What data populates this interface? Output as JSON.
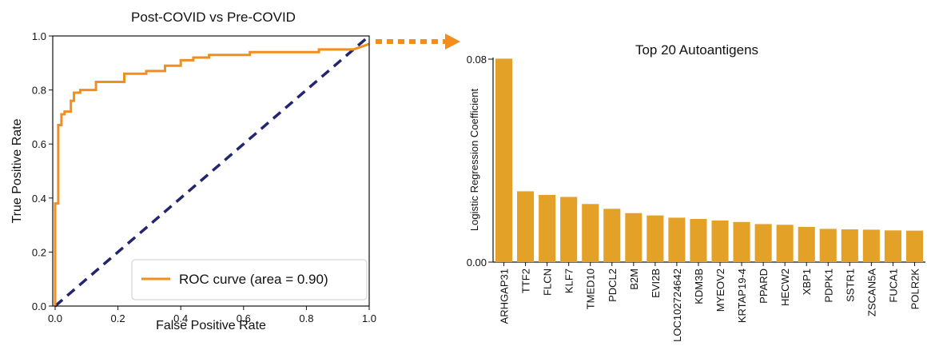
{
  "colors": {
    "roc": "#f28e1c",
    "diagonal": "#23266e",
    "bars": "#e3a227",
    "arrow": "#f28e1c",
    "axis": "#111111"
  },
  "chart_data": [
    {
      "type": "line",
      "title": "Post-COVID vs Pre-COVID",
      "xlabel": "False Positive Rate",
      "ylabel": "True Positive Rate",
      "xlim": [
        0.0,
        1.0
      ],
      "ylim": [
        0.0,
        1.0
      ],
      "xticks": [
        "0.0",
        "0.2",
        "0.4",
        "0.6",
        "0.8",
        "1.0"
      ],
      "yticks": [
        "0.0",
        "0.2",
        "0.4",
        "0.6",
        "0.8",
        "1.0"
      ],
      "grid": false,
      "legend_position": "lower-right",
      "legend": "ROC curve (area = 0.90)",
      "series": [
        {
          "name": "ROC curve (area = 0.90)",
          "style": "solid",
          "x": [
            0.0,
            0.0,
            0.01,
            0.01,
            0.02,
            0.02,
            0.03,
            0.03,
            0.05,
            0.05,
            0.06,
            0.06,
            0.08,
            0.08,
            0.13,
            0.13,
            0.19,
            0.19,
            0.22,
            0.22,
            0.26,
            0.26,
            0.29,
            0.29,
            0.33,
            0.33,
            0.35,
            0.35,
            0.4,
            0.4,
            0.44,
            0.44,
            0.49,
            0.49,
            0.62,
            0.62,
            0.84,
            0.84,
            0.95,
            1.0
          ],
          "y": [
            0.0,
            0.38,
            0.38,
            0.67,
            0.67,
            0.71,
            0.71,
            0.72,
            0.72,
            0.76,
            0.76,
            0.79,
            0.79,
            0.8,
            0.8,
            0.83,
            0.83,
            0.83,
            0.83,
            0.86,
            0.86,
            0.86,
            0.86,
            0.87,
            0.87,
            0.87,
            0.87,
            0.89,
            0.89,
            0.91,
            0.91,
            0.92,
            0.92,
            0.93,
            0.93,
            0.94,
            0.94,
            0.95,
            0.95,
            0.97
          ]
        },
        {
          "name": "",
          "style": "dashed",
          "x": [
            0.0,
            1.0
          ],
          "y": [
            0.0,
            1.0
          ]
        }
      ]
    },
    {
      "type": "bar",
      "title": "Top 20 Autoantigens",
      "xlabel": "",
      "ylabel": "Logistic Regression Coefficient",
      "ylim": [
        0.0,
        0.08
      ],
      "yticks": [
        "0.00",
        "0.08"
      ],
      "grid": false,
      "categories": [
        "ARHGAP31",
        "TTF2",
        "FLCN",
        "KLF7",
        "TMED10",
        "PDCL2",
        "B2M",
        "EVI2B",
        "LOC102724642",
        "KDM3B",
        "MYEOV2",
        "KRTAP19-4",
        "PPARD",
        "HECW2",
        "XBP1",
        "PDPK1",
        "SSTR1",
        "ZSCAN5A",
        "FUCA1",
        "POLR2K"
      ],
      "values": [
        0.0802,
        0.0279,
        0.0265,
        0.0257,
        0.0229,
        0.021,
        0.0193,
        0.0184,
        0.0175,
        0.017,
        0.0164,
        0.0158,
        0.015,
        0.0147,
        0.0139,
        0.0131,
        0.0129,
        0.0128,
        0.0125,
        0.0124
      ]
    }
  ]
}
